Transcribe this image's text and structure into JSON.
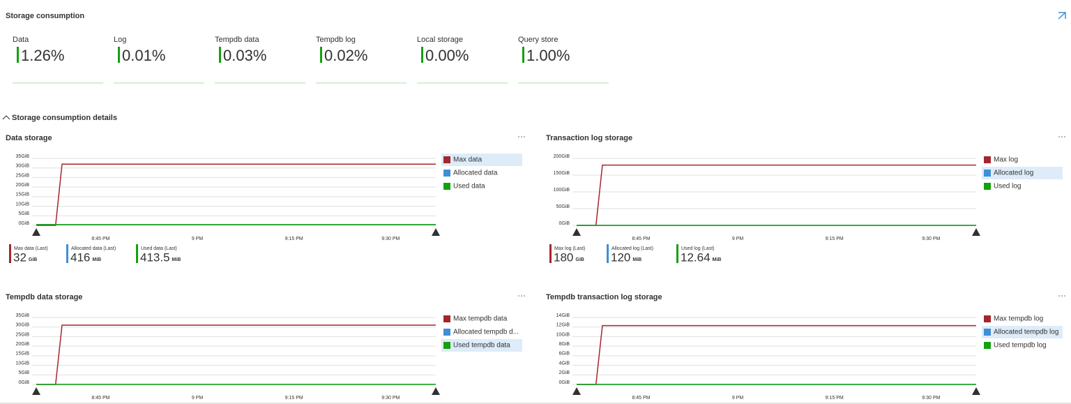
{
  "header": {
    "title": "Storage consumption"
  },
  "tiles": [
    {
      "label": "Data",
      "value": "1.26%"
    },
    {
      "label": "Log",
      "value": "0.01%"
    },
    {
      "label": "Tempdb data",
      "value": "0.03%"
    },
    {
      "label": "Tempdb log",
      "value": "0.02%"
    },
    {
      "label": "Local storage",
      "value": "0.00%"
    },
    {
      "label": "Query store",
      "value": "1.00%"
    }
  ],
  "section": {
    "title": "Storage consumption details"
  },
  "chart_data": [
    {
      "type": "line",
      "title": "Data storage",
      "x": [
        "8:35 PM",
        "8:38 PM",
        "8:39 PM",
        "9:37 PM"
      ],
      "xlim": [
        "8:35 PM",
        "9:37 PM"
      ],
      "xticks": [
        "8:45 PM",
        "9 PM",
        "9:15 PM",
        "9:30 PM"
      ],
      "ylim": [
        0,
        35
      ],
      "yticks": [
        {
          "value": 0,
          "label": "0GiB"
        },
        {
          "value": 5,
          "label": "5GiB"
        },
        {
          "value": 10,
          "label": "10GiB"
        },
        {
          "value": 15,
          "label": "15GiB"
        },
        {
          "value": 20,
          "label": "20GiB"
        },
        {
          "value": 25,
          "label": "25GiB"
        },
        {
          "value": 30,
          "label": "30GiB"
        },
        {
          "value": 35,
          "label": "35GiB"
        }
      ],
      "highlight": 0,
      "series": [
        {
          "name": "Max data",
          "color": "#a4262c",
          "values": [
            0,
            0,
            32,
            32
          ]
        },
        {
          "name": "Allocated data",
          "color": "#3f8fd6",
          "values": [
            0.41,
            0.41,
            0.41,
            0.41
          ]
        },
        {
          "name": "Used data",
          "color": "#13a10e",
          "values": [
            0.4,
            0.4,
            0.4,
            0.4
          ]
        }
      ],
      "stats": [
        {
          "label": "Max data (Last)",
          "value": 32,
          "unit": "GiB"
        },
        {
          "label": "Allocated data (Last)",
          "value": 416,
          "unit": "MiB"
        },
        {
          "label": "Used data (Last)",
          "value": 413.5,
          "unit": "MiB"
        }
      ]
    },
    {
      "type": "line",
      "title": "Transaction log storage",
      "x": [
        "8:35 PM",
        "8:38 PM",
        "8:39 PM",
        "9:37 PM"
      ],
      "xlim": [
        "8:35 PM",
        "9:37 PM"
      ],
      "xticks": [
        "8:45 PM",
        "9 PM",
        "9:15 PM",
        "9:30 PM"
      ],
      "ylim": [
        0,
        200
      ],
      "yticks": [
        {
          "value": 0,
          "label": "0GiB"
        },
        {
          "value": 50,
          "label": "50GiB"
        },
        {
          "value": 100,
          "label": "100GiB"
        },
        {
          "value": 150,
          "label": "150GiB"
        },
        {
          "value": 200,
          "label": "200GiB"
        }
      ],
      "highlight": 1,
      "series": [
        {
          "name": "Max log",
          "color": "#a4262c",
          "values": [
            0,
            0,
            180,
            180
          ]
        },
        {
          "name": "Allocated log",
          "color": "#3f8fd6",
          "values": [
            0.12,
            0.12,
            0.12,
            0.12
          ]
        },
        {
          "name": "Used log",
          "color": "#13a10e",
          "values": [
            0.01,
            0.01,
            0.01,
            0.01
          ]
        }
      ],
      "stats": [
        {
          "label": "Max log (Last)",
          "value": 180,
          "unit": "GiB"
        },
        {
          "label": "Allocated log (Last)",
          "value": 120,
          "unit": "MiB"
        },
        {
          "label": "Used log (Last)",
          "value": 12.64,
          "unit": "MiB"
        }
      ]
    },
    {
      "type": "line",
      "title": "Tempdb data storage",
      "x": [
        "8:35 PM",
        "8:38 PM",
        "8:39 PM",
        "9:37 PM"
      ],
      "xlim": [
        "8:35 PM",
        "9:37 PM"
      ],
      "xticks": [
        "8:45 PM",
        "9 PM",
        "9:15 PM",
        "9:30 PM"
      ],
      "ylim": [
        0,
        35
      ],
      "yticks": [
        {
          "value": 0,
          "label": "0GiB"
        },
        {
          "value": 5,
          "label": "5GiB"
        },
        {
          "value": 10,
          "label": "10GiB"
        },
        {
          "value": 15,
          "label": "15GiB"
        },
        {
          "value": 20,
          "label": "20GiB"
        },
        {
          "value": 25,
          "label": "25GiB"
        },
        {
          "value": 30,
          "label": "30GiB"
        },
        {
          "value": 35,
          "label": "35GiB"
        }
      ],
      "highlight": 2,
      "series": [
        {
          "name": "Max tempdb data",
          "color": "#a4262c",
          "values": [
            0,
            0,
            31,
            31
          ]
        },
        {
          "name": "Allocated tempdb d...",
          "color": "#3f8fd6",
          "values": [
            0.1,
            0.1,
            0.1,
            0.1
          ]
        },
        {
          "name": "Used tempdb data",
          "color": "#13a10e",
          "values": [
            0.05,
            0.05,
            0.05,
            0.05
          ]
        }
      ]
    },
    {
      "type": "line",
      "title": "Tempdb transaction log storage",
      "x": [
        "8:35 PM",
        "8:38 PM",
        "8:39 PM",
        "9:37 PM"
      ],
      "xlim": [
        "8:35 PM",
        "9:37 PM"
      ],
      "xticks": [
        "8:45 PM",
        "9 PM",
        "9:15 PM",
        "9:30 PM"
      ],
      "ylim": [
        0,
        14
      ],
      "yticks": [
        {
          "value": 0,
          "label": "0GiB"
        },
        {
          "value": 2,
          "label": "2GiB"
        },
        {
          "value": 4,
          "label": "4GiB"
        },
        {
          "value": 6,
          "label": "6GiB"
        },
        {
          "value": 8,
          "label": "8GiB"
        },
        {
          "value": 10,
          "label": "10GiB"
        },
        {
          "value": 12,
          "label": "12GiB"
        },
        {
          "value": 14,
          "label": "14GiB"
        }
      ],
      "highlight": 1,
      "series": [
        {
          "name": "Max tempdb log",
          "color": "#a4262c",
          "values": [
            0,
            0,
            12.3,
            12.3
          ]
        },
        {
          "name": "Allocated tempdb log",
          "color": "#3f8fd6",
          "values": [
            0.02,
            0.02,
            0.02,
            0.02
          ]
        },
        {
          "name": "Used tempdb log",
          "color": "#13a10e",
          "values": [
            0.01,
            0.01,
            0.01,
            0.01
          ]
        }
      ]
    }
  ]
}
